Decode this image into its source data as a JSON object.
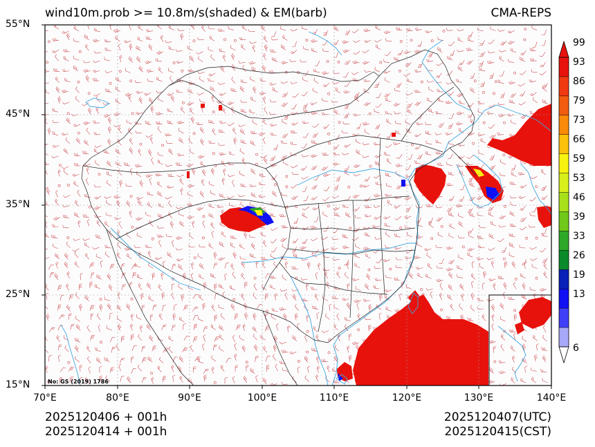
{
  "header": {
    "title": "wind10m.prob >= 10.8m/s(shaded) & EM(barb)",
    "source": "CMA-REPS"
  },
  "map": {
    "lat_labels": [
      "55°N",
      "45°N",
      "35°N",
      "25°N",
      "15°N"
    ],
    "lon_labels": [
      "70°E",
      "80°E",
      "90°E",
      "100°E",
      "110°E",
      "120°E",
      "130°E",
      "140°E"
    ],
    "extent": {
      "lon_min": 70,
      "lon_max": 140,
      "lat_min": 15,
      "lat_max": 55
    },
    "review_note": "No: GS (2019) 1786",
    "colors": {
      "land_border": "#1a1a1a",
      "water": "#3ba7e0",
      "barb": "#c9484c",
      "grid": "#9a9a9a"
    }
  },
  "colorbar": {
    "levels": [
      "99",
      "93",
      "86",
      "79",
      "73",
      "66",
      "59",
      "53",
      "46",
      "39",
      "33",
      "26",
      "19",
      "13",
      "6"
    ],
    "colors": [
      "#e8120c",
      "#f03a12",
      "#f25c10",
      "#f98a0a",
      "#fcc10a",
      "#f8f210",
      "#d8ef1c",
      "#a8e01c",
      "#6fc81a",
      "#2ea828",
      "#0a8a2a",
      "#0a20b8",
      "#1010f2",
      "#4040f8",
      "#a8a8f8"
    ]
  },
  "footer": {
    "init_utc": "2025120406  +  001h",
    "init_cst": "2025120414  +  001h",
    "valid_utc": "2025120407(UTC)",
    "valid_cst": "2025120415(CST)"
  }
}
